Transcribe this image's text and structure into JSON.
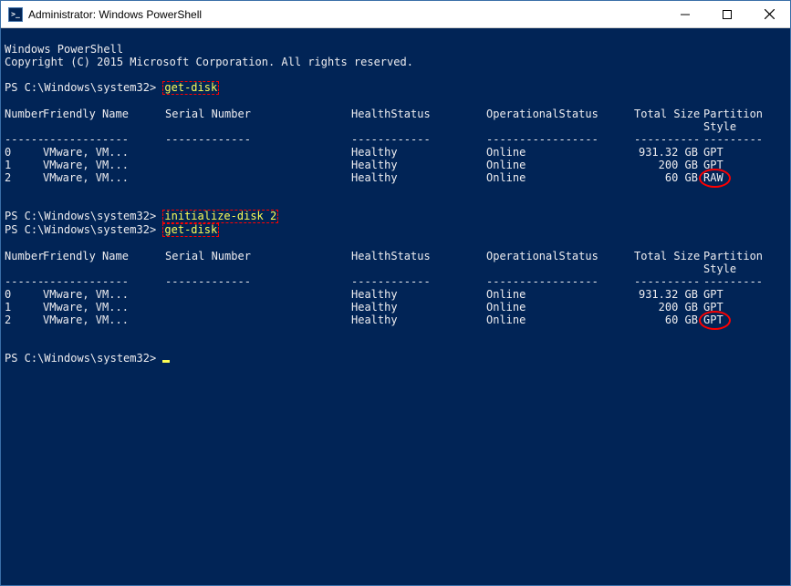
{
  "window": {
    "title": "Administrator: Windows PowerShell"
  },
  "colors": {
    "terminal_bg": "#012456",
    "terminal_fg": "#eeedf0",
    "command_fg": "#fdfd54",
    "highlight_border": "#ff0000",
    "titlebar_bg": "#ffffff",
    "outer_border": "#3a6fa8"
  },
  "banner1": "Windows PowerShell",
  "banner2": "Copyright (C) 2015 Microsoft Corporation. All rights reserved.",
  "prompt": "PS C:\\Windows\\system32>",
  "commands": {
    "cmd1": "get-disk",
    "cmd2_a": "initialize-disk",
    "cmd2_b": "2",
    "cmd3": "get-disk"
  },
  "headers": {
    "number": "Number",
    "friendly": "Friendly Name",
    "serial": "Serial Number",
    "health": "HealthStatus",
    "oper": "OperationalStatus",
    "size": "Total Size",
    "part": "Partition",
    "style": "Style"
  },
  "dashes": {
    "num": "------",
    "name": "-------------",
    "ser": "-------------",
    "hs": "------------",
    "os": "-----------------",
    "sz": "----------",
    "ps": "---------"
  },
  "table1": [
    {
      "num": "0",
      "name": "VMware, VM...",
      "ser": "",
      "hs": "Healthy",
      "os": "Online",
      "sz": "931.32 GB",
      "ps": "GPT",
      "circle": false
    },
    {
      "num": "1",
      "name": "VMware, VM...",
      "ser": "",
      "hs": "Healthy",
      "os": "Online",
      "sz": "200 GB",
      "ps": "GPT",
      "circle": false
    },
    {
      "num": "2",
      "name": "VMware, VM...",
      "ser": "",
      "hs": "Healthy",
      "os": "Online",
      "sz": "60 GB",
      "ps": "RAW",
      "circle": true
    }
  ],
  "table2": [
    {
      "num": "0",
      "name": "VMware, VM...",
      "ser": "",
      "hs": "Healthy",
      "os": "Online",
      "sz": "931.32 GB",
      "ps": "GPT",
      "circle": false
    },
    {
      "num": "1",
      "name": "VMware, VM...",
      "ser": "",
      "hs": "Healthy",
      "os": "Online",
      "sz": "200 GB",
      "ps": "GPT",
      "circle": false
    },
    {
      "num": "2",
      "name": "VMware, VM...",
      "ser": "",
      "hs": "Healthy",
      "os": "Online",
      "sz": "60 GB",
      "ps": "GPT",
      "circle": true
    }
  ]
}
